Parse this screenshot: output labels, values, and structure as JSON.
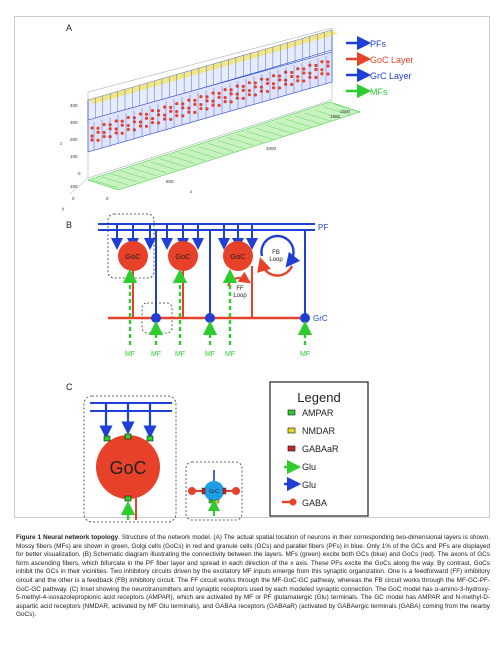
{
  "panels": {
    "a": "A",
    "b": "B",
    "c": "C"
  },
  "panel_a": {
    "legend": [
      {
        "label": "PFs",
        "color": "#1f3fd6"
      },
      {
        "label": "GoC Layer",
        "color": "#e8412a"
      },
      {
        "label": "GrC Layer",
        "color": "#1f3fd6"
      },
      {
        "label": "MFs",
        "color": "#2ecc2e"
      }
    ],
    "z_ticks": [
      "400",
      "300",
      "200",
      "100",
      "0"
    ],
    "z_label": "z",
    "x_ticks": [
      "0",
      "500",
      "1000",
      "1500"
    ],
    "x_label": "x",
    "y_ticks": [
      "0",
      "150"
    ],
    "y_label": "y",
    "depth_tick": "1500"
  },
  "panel_b": {
    "pf_label": "PF",
    "goc_cells": [
      "GoC",
      "GoC",
      "GoC"
    ],
    "fb_loop": "FB\nLoop",
    "ff_loop": "FF\nLoop",
    "grc_label": "GrC",
    "mf_labels": [
      "MF",
      "MF",
      "MF",
      "MF",
      "MF",
      "MF"
    ]
  },
  "panel_c": {
    "goc_label": "GoC",
    "grc_label": "GrC",
    "legend_title": "Legend",
    "legend_items": [
      {
        "label": "AMPAR",
        "color": "#2ecc2e",
        "kind": "square"
      },
      {
        "label": "NMDAR",
        "color": "#e5d72a",
        "kind": "square"
      },
      {
        "label": "GABAaR",
        "color": "#c62828",
        "kind": "square"
      },
      {
        "label": "Glu",
        "color": "#2ecc2e",
        "kind": "arrow"
      },
      {
        "label": "Glu",
        "color": "#1f3fd6",
        "kind": "arrow"
      },
      {
        "label": "GABA",
        "color": "#e8412a",
        "kind": "dot"
      }
    ]
  },
  "caption": {
    "title": "Figure 1 Neural network topology",
    "text": ". Structure of the network model. (A) The actual spatial location of neurons in their corresponding two-dimensional layers is shown. Mossy fibers (MFs) are shown in green, Golgi cells (GoCs) in red and granule cells (GCs) and parallel fibers (PFs) in blue. Only 1% of the GCs and PFs are displayed for better visualization. (B) Schematic diagram illustrating the connectivity between the layers. MFs (green) excite both GCs (blue) and GoCs (red). The axons of GCs form ascending fibers, which bifurcate in the PF fiber layer and spread in each direction of the x axis. These PFs excite the GoCs along the way. By contrast, GoCs inhibit the GCs in their vicinities. Two inhibitory circuits driven by the excitatory MF inputs emerge from this synaptic organization. One is a feedforward (FF) inhibitory circuit and the other is a feedback (FB) inhibitory circuit. The FF circuit works through the MF-GoC-GC pathway, whereas the FB circuit works through the MF-GC-PF-GoC-GC pathway. (C) Inset showing the neurotransmitters and synaptic receptors used by each modeled synaptic connection. The GoC model has α-amino-3-hydroxy-5-methyl-4-isoxazolepropionic acid receptors (AMPAR), which are activated by MF or PF glutamatergic (Glu) terminals. The GC model has AMPAR and N-methyl-D-aspartic acid receptors (NMDAR, activated by MF Glu terminals), and GABAa receptors (GABAaR) (activated by GABAergic terminals (GABA) coming from the nearby GoCs)."
  }
}
